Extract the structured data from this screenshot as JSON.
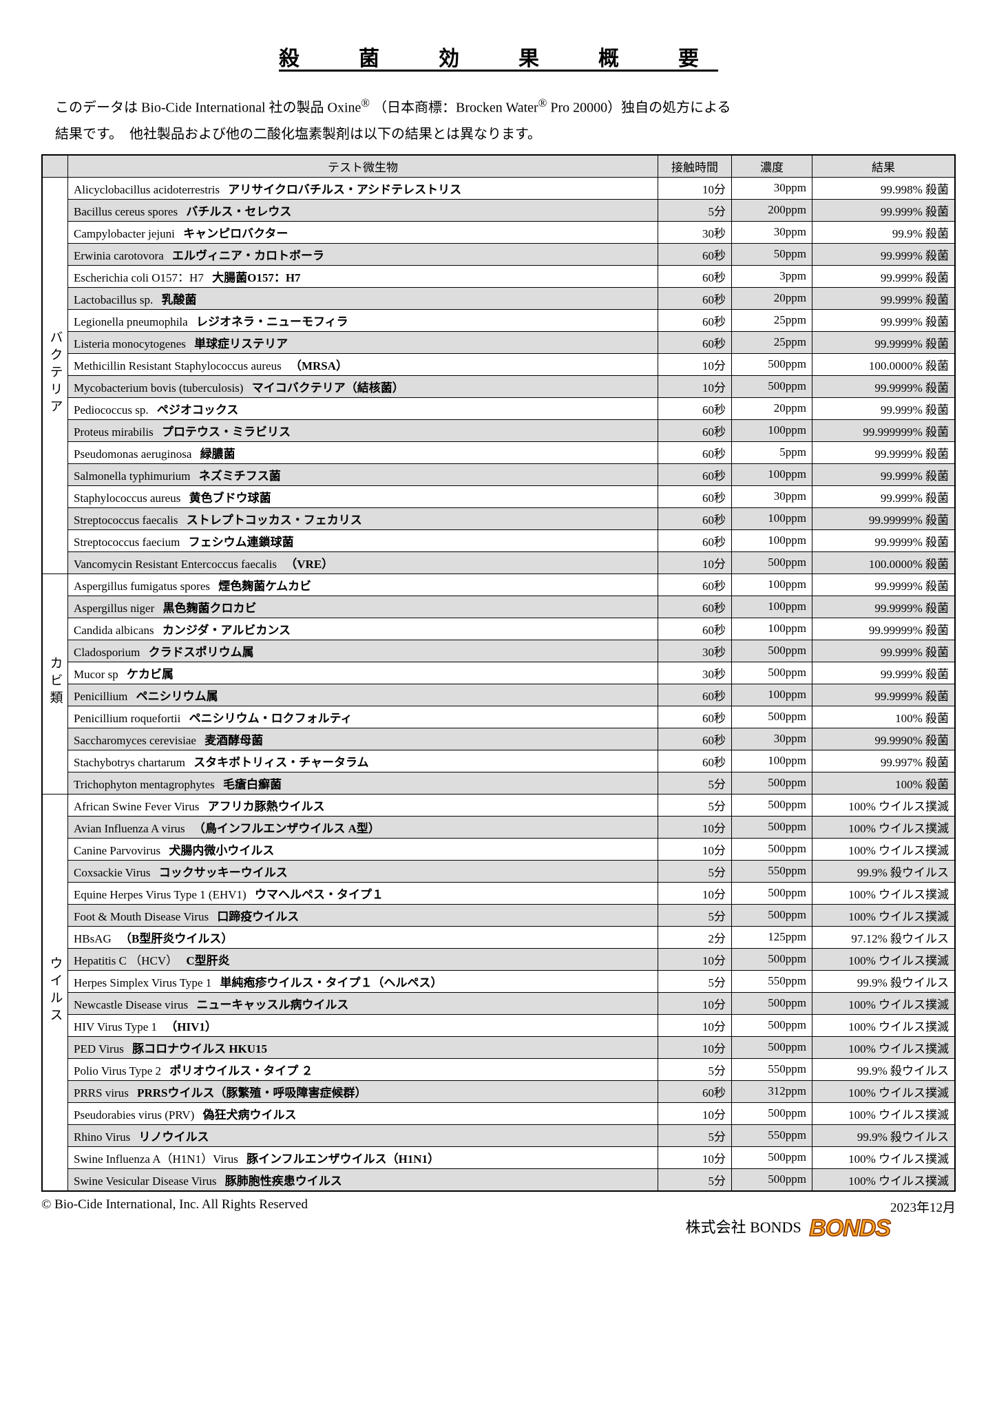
{
  "title": "殺　菌　効　果　概　要",
  "intro1_a": "このデータは Bio-Cide International 社の製品 Oxine",
  "intro1_b": " （日本商標：Brocken Water",
  "intro1_c": " Pro 20000）独自の処方による",
  "intro2": "結果です。　他社製品および他の二酸化塩素製剤は以下の結果とは異なります。",
  "headers": {
    "c0": " ",
    "c1": "テスト微生物",
    "c2": "接触時間",
    "c3": "濃度",
    "c4": "結果"
  },
  "categories": [
    {
      "label": "バクテリア",
      "rows": [
        {
          "s": 0,
          "latin": "Alicyclobacillus acidoterrestris",
          "jp": "アリサイクロバチルス・アシドテレストリス",
          "t": "10分",
          "c": "30ppm",
          "r": "99.998% 殺菌"
        },
        {
          "s": 1,
          "latin": "Bacillus cereus spores",
          "jp": "バチルス・セレウス",
          "t": "5分",
          "c": "200ppm",
          "r": "99.999% 殺菌"
        },
        {
          "s": 0,
          "latin": "Campylobacter jejuni",
          "jp": "キャンピロバクター",
          "t": "30秒",
          "c": "30ppm",
          "r": "99.9% 殺菌"
        },
        {
          "s": 1,
          "latin": "Erwinia carotovora",
          "jp": "エルヴィニア・カロトボーラ",
          "t": "60秒",
          "c": "50ppm",
          "r": "99.999% 殺菌"
        },
        {
          "s": 0,
          "latin": "Escherichia coli O157：H7",
          "jp": "大腸菌O157：H7",
          "t": "60秒",
          "c": "3ppm",
          "r": "99.999% 殺菌"
        },
        {
          "s": 1,
          "latin": "Lactobacillus sp.",
          "jp": "乳酸菌",
          "t": "60秒",
          "c": "20ppm",
          "r": "99.999% 殺菌"
        },
        {
          "s": 0,
          "latin": "Legionella pneumophila",
          "jp": "レジオネラ・ニューモフィラ",
          "t": "60秒",
          "c": "25ppm",
          "r": "99.999% 殺菌"
        },
        {
          "s": 1,
          "latin": "Listeria monocytogenes",
          "jp": "単球症リステリア",
          "t": "60秒",
          "c": "25ppm",
          "r": "99.9999% 殺菌"
        },
        {
          "s": 0,
          "latin": "Methicillin Resistant Staphylococcus aureus",
          "jp": "（MRSA）",
          "t": "10分",
          "c": "500ppm",
          "r": "100.0000% 殺菌"
        },
        {
          "s": 1,
          "latin": "Mycobacterium bovis (tuberculosis)",
          "jp": "マイコバクテリア（結核菌）",
          "t": "10分",
          "c": "500ppm",
          "r": "99.9999% 殺菌"
        },
        {
          "s": 0,
          "latin": "Pediococcus sp.",
          "jp": "ペジオコックス",
          "t": "60秒",
          "c": "20ppm",
          "r": "99.999% 殺菌"
        },
        {
          "s": 1,
          "latin": "Proteus mirabilis",
          "jp": "プロテウス・ミラビリス",
          "t": "60秒",
          "c": "100ppm",
          "r": "99.999999% 殺菌"
        },
        {
          "s": 0,
          "latin": "Pseudomonas aeruginosa",
          "jp": "緑膿菌",
          "t": "60秒",
          "c": "5ppm",
          "r": "99.9999% 殺菌"
        },
        {
          "s": 1,
          "latin": "Salmonella typhimurium",
          "jp": "ネズミチフス菌",
          "t": "60秒",
          "c": "100ppm",
          "r": "99.999% 殺菌"
        },
        {
          "s": 0,
          "latin": "Staphylococcus aureus",
          "jp": "黄色ブドウ球菌",
          "t": "60秒",
          "c": "30ppm",
          "r": "99.999% 殺菌"
        },
        {
          "s": 1,
          "latin": "Streptococcus faecalis",
          "jp": "ストレプトコッカス・フェカリス",
          "t": "60秒",
          "c": "100ppm",
          "r": "99.99999% 殺菌"
        },
        {
          "s": 0,
          "latin": "Streptococcus faecium",
          "jp": "フェシウム連鎖球菌",
          "t": "60秒",
          "c": "100ppm",
          "r": "99.9999% 殺菌"
        },
        {
          "s": 1,
          "latin": "Vancomycin Resistant Entercoccus faecalis",
          "jp": "（VRE）",
          "t": "10分",
          "c": "500ppm",
          "r": "100.0000% 殺菌"
        }
      ]
    },
    {
      "label": "カビ類",
      "rows": [
        {
          "s": 0,
          "latin": "Aspergillus fumigatus spores",
          "jp": "煙色麹菌ケムカビ",
          "t": "60秒",
          "c": "100ppm",
          "r": "99.9999% 殺菌"
        },
        {
          "s": 1,
          "latin": "Aspergillus niger",
          "jp": "黒色麹菌クロカビ",
          "t": "60秒",
          "c": "100ppm",
          "r": "99.9999% 殺菌"
        },
        {
          "s": 0,
          "latin": "Candida albicans",
          "jp": "カンジダ・アルビカンス",
          "t": "60秒",
          "c": "100ppm",
          "r": "99.99999% 殺菌"
        },
        {
          "s": 1,
          "latin": "Cladosporium",
          "jp": "クラドスポリウム属",
          "t": "30秒",
          "c": "500ppm",
          "r": "99.999% 殺菌"
        },
        {
          "s": 0,
          "latin": "Mucor sp",
          "jp": "ケカビ属",
          "t": "30秒",
          "c": "500ppm",
          "r": "99.999% 殺菌"
        },
        {
          "s": 1,
          "latin": "Penicillium",
          "jp": "ペニシリウム属",
          "t": "60秒",
          "c": "100ppm",
          "r": "99.9999% 殺菌"
        },
        {
          "s": 0,
          "latin": "Penicillium roquefortii",
          "jp": "ペニシリウム・ロクフォルティ",
          "t": "60秒",
          "c": "500ppm",
          "r": "100% 殺菌"
        },
        {
          "s": 1,
          "latin": "Saccharomyces cerevisiae",
          "jp": "麦酒酵母菌",
          "t": "60秒",
          "c": "30ppm",
          "r": "99.9990% 殺菌"
        },
        {
          "s": 0,
          "latin": "Stachybotrys chartarum",
          "jp": "スタキボトリィス・チャータラム",
          "t": "60秒",
          "c": "100ppm",
          "r": "99.997% 殺菌"
        },
        {
          "s": 1,
          "latin": "Trichophyton mentagrophytes",
          "jp": "毛瘡白癬菌",
          "t": "5分",
          "c": "500ppm",
          "r": "100% 殺菌"
        }
      ]
    },
    {
      "label": "ウイルス",
      "rows": [
        {
          "s": 0,
          "latin": "African Swine Fever Virus",
          "jp": "アフリカ豚熱ウイルス",
          "t": "5分",
          "c": "500ppm",
          "r": "100% ウイルス撲滅"
        },
        {
          "s": 1,
          "latin": "Avian Influenza A virus",
          "jp": "（鳥インフルエンザウイルス A型）",
          "t": "10分",
          "c": "500ppm",
          "r": "100% ウイルス撲滅"
        },
        {
          "s": 0,
          "latin": "Canine Parvovirus",
          "jp": "犬腸内微小ウイルス",
          "t": "10分",
          "c": "500ppm",
          "r": "100% ウイルス撲滅"
        },
        {
          "s": 1,
          "latin": "Coxsackie Virus",
          "jp": "コックサッキーウイルス",
          "t": "5分",
          "c": "550ppm",
          "r": "99.9% 殺ウイルス"
        },
        {
          "s": 0,
          "latin": "Equine Herpes Virus Type 1 (EHV1)",
          "jp": "ウマヘルペス・タイプ１",
          "t": "10分",
          "c": "500ppm",
          "r": "100% ウイルス撲滅"
        },
        {
          "s": 1,
          "latin": "Foot & Mouth Disease Virus",
          "jp": "口蹄疫ウイルス",
          "t": "5分",
          "c": "500ppm",
          "r": "100% ウイルス撲滅"
        },
        {
          "s": 0,
          "latin": "HBsAG",
          "jp": "（B型肝炎ウイルス）",
          "t": "2分",
          "c": "125ppm",
          "r": "97.12% 殺ウイルス"
        },
        {
          "s": 1,
          "latin": "Hepatitis C （HCV）",
          "jp": "C型肝炎",
          "t": "10分",
          "c": "500ppm",
          "r": "100% ウイルス撲滅"
        },
        {
          "s": 0,
          "latin": "Herpes Simplex Virus Type 1",
          "jp": "単純疱疹ウイルス・タイプ１（ヘルペス）",
          "t": "5分",
          "c": "550ppm",
          "r": "99.9% 殺ウイルス"
        },
        {
          "s": 1,
          "latin": "Newcastle Disease virus",
          "jp": "ニューキャッスル病ウイルス",
          "t": "10分",
          "c": "500ppm",
          "r": "100% ウイルス撲滅"
        },
        {
          "s": 0,
          "latin": "HIV Virus Type 1",
          "jp": "（HIV1）",
          "t": "10分",
          "c": "500ppm",
          "r": "100% ウイルス撲滅"
        },
        {
          "s": 1,
          "latin": "PED Virus",
          "jp": "豚コロナウイルス HKU15",
          "t": "10分",
          "c": "500ppm",
          "r": "100% ウイルス撲滅"
        },
        {
          "s": 0,
          "latin": "Polio Virus Type 2",
          "jp": "ポリオウイルス・タイプ ２",
          "t": "5分",
          "c": "550ppm",
          "r": "99.9% 殺ウイルス"
        },
        {
          "s": 1,
          "latin": "PRRS virus",
          "jp": "PRRSウイルス（豚繁殖・呼吸障害症候群）",
          "t": "60秒",
          "c": "312ppm",
          "r": "100% ウイルス撲滅"
        },
        {
          "s": 0,
          "latin": "Pseudorabies virus (PRV)",
          "jp": "偽狂犬病ウイルス",
          "t": "10分",
          "c": "500ppm",
          "r": "100% ウイルス撲滅"
        },
        {
          "s": 1,
          "latin": "Rhino Virus",
          "jp": "リノウイルス",
          "t": "5分",
          "c": "550ppm",
          "r": "99.9% 殺ウイルス"
        },
        {
          "s": 0,
          "latin": "Swine Influenza A（H1N1）Virus",
          "jp": "豚インフルエンザウイルス（H1N1）",
          "t": "10分",
          "c": "500ppm",
          "r": "100% ウイルス撲滅"
        },
        {
          "s": 1,
          "latin": "Swine Vesicular Disease Virus",
          "jp": "豚肺胞性疾患ウイルス",
          "t": "5分",
          "c": "500ppm",
          "r": "100% ウイルス撲滅"
        }
      ]
    }
  ],
  "footer_left": "© Bio-Cide International, Inc. All Rights Reserved",
  "footer_date": "2023年12月",
  "footer_company": "株式会社 BONDS",
  "footer_logo": "BONDS"
}
